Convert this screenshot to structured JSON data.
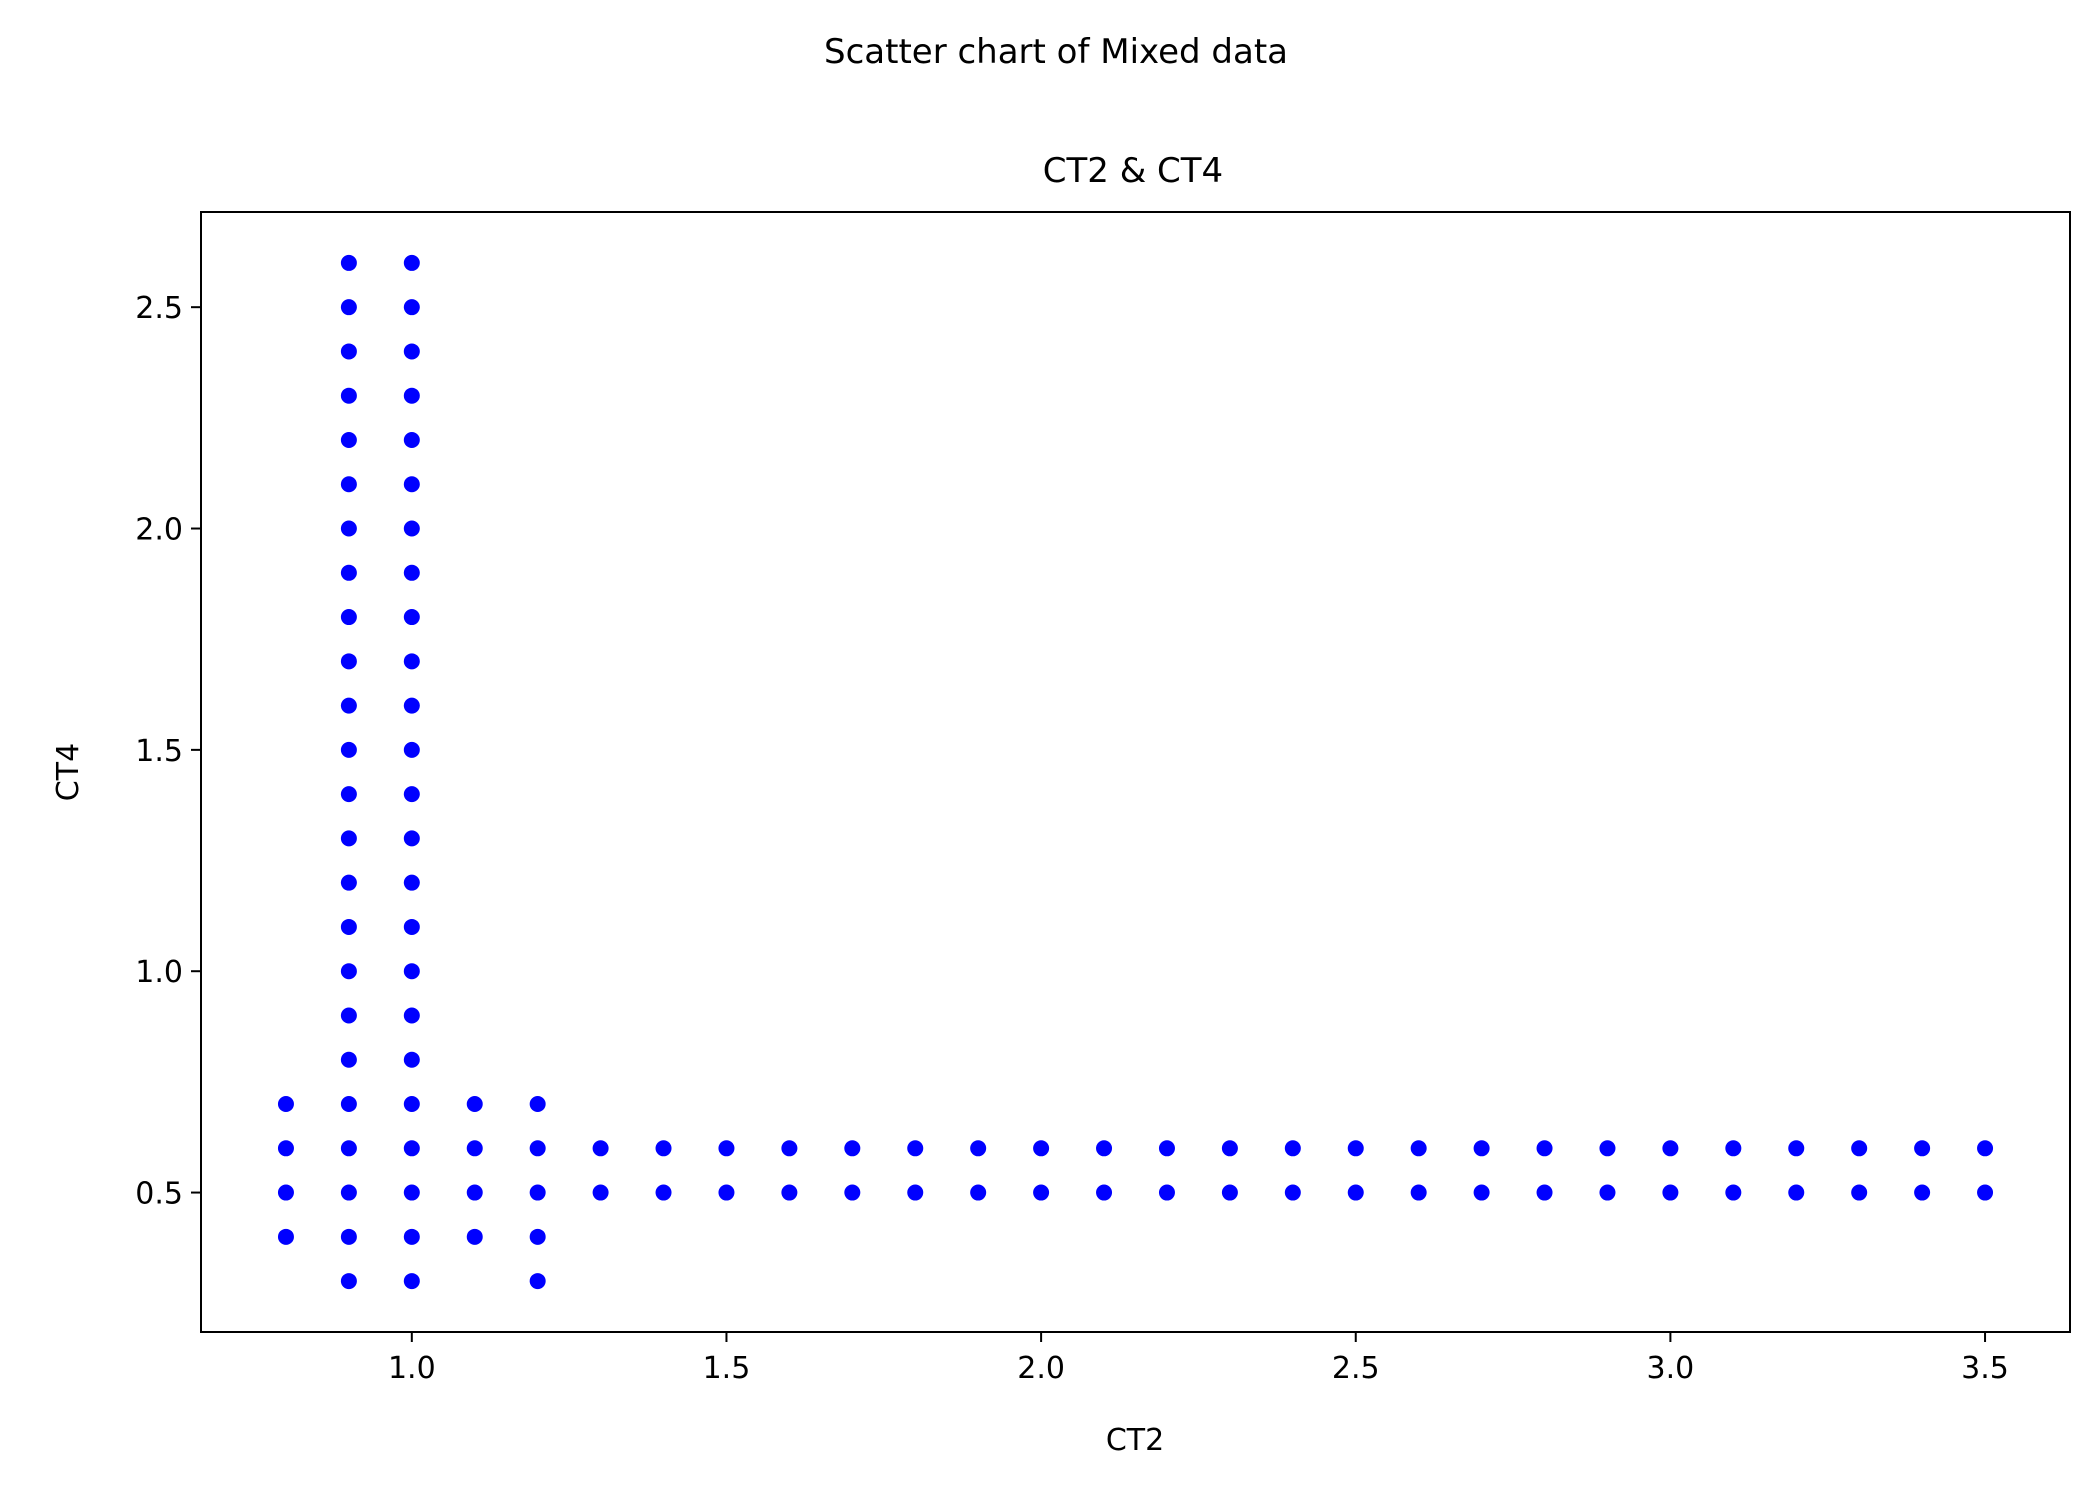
{
  "page": {
    "suptitle": "Scatter chart of Mixed data"
  },
  "chart_data": {
    "type": "scatter",
    "title": "CT2 & CT4",
    "xlabel": "CT2",
    "ylabel": "CT4",
    "xlim": [
      0.665,
      3.635
    ],
    "ylim": [
      0.185,
      2.715
    ],
    "x_ticks": [
      1.0,
      1.5,
      2.0,
      2.5,
      3.0,
      3.5
    ],
    "x_tick_labels": [
      "1.0",
      "1.5",
      "2.0",
      "2.5",
      "3.0",
      "3.5"
    ],
    "y_ticks": [
      0.5,
      1.0,
      1.5,
      2.0,
      2.5
    ],
    "y_tick_labels": [
      "0.5",
      "1.0",
      "1.5",
      "2.0",
      "2.5"
    ],
    "grid": false,
    "legend": false,
    "colors": {
      "marker": "#0000ff",
      "axes": "#000000",
      "background": "#ffffff"
    },
    "series": [
      {
        "x": [
          0.8,
          0.8,
          0.8,
          0.8,
          0.9,
          0.9,
          0.9,
          0.9,
          0.9,
          0.9,
          0.9,
          0.9,
          0.9,
          0.9,
          0.9,
          0.9,
          0.9,
          0.9,
          0.9,
          0.9,
          0.9,
          0.9,
          0.9,
          0.9,
          0.9,
          0.9,
          0.9,
          0.9,
          1.0,
          1.0,
          1.0,
          1.0,
          1.0,
          1.0,
          1.0,
          1.0,
          1.0,
          1.0,
          1.0,
          1.0,
          1.0,
          1.0,
          1.0,
          1.0,
          1.0,
          1.0,
          1.0,
          1.0,
          1.0,
          1.0,
          1.0,
          1.0,
          1.1,
          1.1,
          1.1,
          1.1,
          1.2,
          1.2,
          1.2,
          1.2,
          1.2,
          1.3,
          1.3,
          1.4,
          1.4,
          1.5,
          1.5,
          1.6,
          1.6,
          1.7,
          1.7,
          1.8,
          1.8,
          1.9,
          1.9,
          2.0,
          2.0,
          2.1,
          2.1,
          2.2,
          2.2,
          2.3,
          2.3,
          2.4,
          2.4,
          2.5,
          2.5,
          2.6,
          2.6,
          2.7,
          2.7,
          2.8,
          2.8,
          2.9,
          2.9,
          3.0,
          3.0,
          3.1,
          3.1,
          3.2,
          3.2,
          3.3,
          3.3,
          3.4,
          3.4,
          3.5,
          3.5
        ],
        "y": [
          0.4,
          0.5,
          0.6,
          0.7,
          0.3,
          0.4,
          0.5,
          0.6,
          0.7,
          0.8,
          0.9,
          1.0,
          1.1,
          1.2,
          1.3,
          1.4,
          1.5,
          1.6,
          1.7,
          1.8,
          1.9,
          2.0,
          2.1,
          2.2,
          2.3,
          2.4,
          2.5,
          2.6,
          0.3,
          0.4,
          0.5,
          0.6,
          0.7,
          0.8,
          0.9,
          1.0,
          1.1,
          1.2,
          1.3,
          1.4,
          1.5,
          1.6,
          1.7,
          1.8,
          1.9,
          2.0,
          2.1,
          2.2,
          2.3,
          2.4,
          2.5,
          2.6,
          0.4,
          0.5,
          0.6,
          0.7,
          0.3,
          0.4,
          0.5,
          0.6,
          0.7,
          0.5,
          0.6,
          0.5,
          0.6,
          0.5,
          0.6,
          0.5,
          0.6,
          0.5,
          0.6,
          0.5,
          0.6,
          0.5,
          0.6,
          0.5,
          0.6,
          0.5,
          0.6,
          0.5,
          0.6,
          0.5,
          0.6,
          0.5,
          0.6,
          0.5,
          0.6,
          0.5,
          0.6,
          0.5,
          0.6,
          0.5,
          0.6,
          0.5,
          0.6,
          0.5,
          0.6,
          0.5,
          0.6,
          0.5,
          0.6,
          0.5,
          0.6,
          0.5,
          0.6,
          0.5,
          0.6
        ]
      }
    ]
  }
}
